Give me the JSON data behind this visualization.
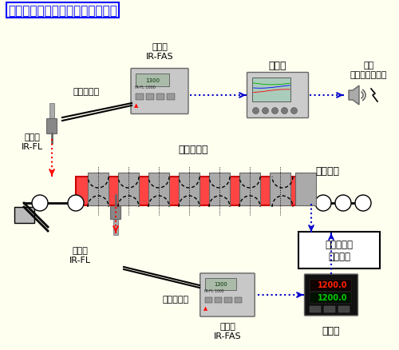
{
  "title": "【高周波加熱ビレット温度測定】",
  "bg_color": "#FFFFF0",
  "title_color": "#0000FF",
  "border_color": "#0000FF",
  "labels": {
    "top_unit": "本体部\nIR-FAS",
    "top_fiber": "ファイバ部",
    "top_collector": "集光部\nIR-FL",
    "recorder": "記録計",
    "alarm": "警報\n（オプション）",
    "furnace": "誘導加熱炉",
    "billet": "ビレット",
    "bottom_collector": "集光部\nIR-FL",
    "bottom_fiber": "ファイバ部",
    "bottom_unit": "本体部\nIR-FAS",
    "hf_device": "高周波誘導\n加熱装置",
    "controller": "調節計"
  }
}
